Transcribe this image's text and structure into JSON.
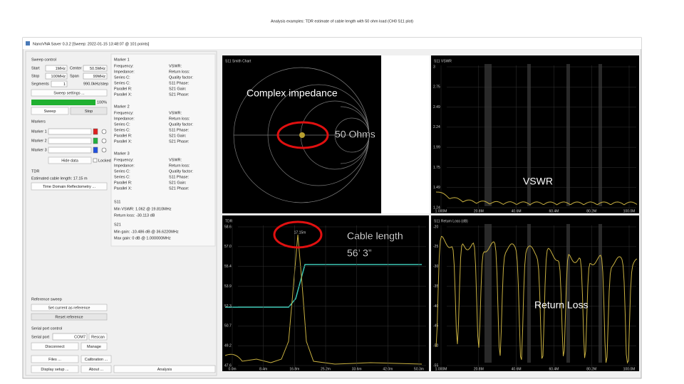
{
  "slide_title": "Analysis examples: TDR estimate of cable length with 50 ohm load (CH0 S11 plot)",
  "window_title": "NanoVNA Saver 0.3.2 [Sweep: 2022-01-15 13:48:07 @ 101 points]",
  "sweep_control": {
    "heading": "Sweep control",
    "start_label": "Start",
    "start": "1MHz",
    "center_label": "Center",
    "center": "50.5MHz",
    "stop_label": "Stop",
    "stop": "100MHz",
    "span_label": "Span",
    "span": "99MHz",
    "segments_label": "Segments",
    "segments": "1",
    "step": "990.0kHz/step",
    "settings_button": "Sweep settings ...",
    "progress": "100%",
    "sweep_button": "Sweep",
    "stop_button": "Stop"
  },
  "markers": {
    "heading": "Markers",
    "rows": [
      "Marker 1",
      "Marker 2",
      "Marker 3"
    ],
    "hide_button": "Hide data",
    "locked": "Locked"
  },
  "tdr_panel": {
    "heading": "TDR",
    "estimate": "Estimated cable length: 17.15 m",
    "button": "Time Domain Reflectometry ..."
  },
  "marker_info": [
    {
      "title": "Marker 1",
      "left": [
        "Frequency:",
        "Impedance:",
        "Series C:",
        "Series C:",
        "Parallel R:",
        "Parallel X:"
      ],
      "right": [
        "VSWR:",
        "Return loss:",
        "Quality factor:",
        "S11 Phase:",
        "S21 Gain:",
        "S21 Phase:"
      ]
    },
    {
      "title": "Marker 2",
      "left": [
        "Frequency:",
        "Impedance:",
        "Series C:",
        "Series C:",
        "Parallel R:",
        "Parallel X:"
      ],
      "right": [
        "VSWR:",
        "Return loss:",
        "Quality factor:",
        "S11 Phase:",
        "S21 Gain:",
        "S21 Phase:"
      ]
    },
    {
      "title": "Marker 3",
      "left": [
        "Frequency:",
        "Impedance:",
        "Series C:",
        "Series C:",
        "Parallel R:",
        "Parallel X:"
      ],
      "right": [
        "VSWR:",
        "Return loss:",
        "Quality factor:",
        "S11 Phase:",
        "S21 Gain:",
        "S21 Phase:"
      ]
    }
  ],
  "s11_summary": {
    "heading": "S11",
    "lines": [
      "Min VSWR: 1.062 @ 19.810MHz",
      "Return loss: -30.113 dB"
    ]
  },
  "s21_summary": {
    "heading": "S21",
    "lines": [
      "Min gain: -10.486 dB @ 36.6220MHz",
      "Max gain: 0 dB @ 1.000000MHz"
    ]
  },
  "reference": {
    "heading": "Reference sweep",
    "set_button": "Set current as reference",
    "reset_button": "Reset reference"
  },
  "serial": {
    "heading": "Serial port control",
    "port_label": "Serial port",
    "port": "COM7",
    "rescan": "Rescan",
    "disconnect": "Disconnect",
    "manage": "Manage"
  },
  "bottom_buttons": [
    "Files ...",
    "Calibration ...",
    "Display setup ...",
    "About ..."
  ],
  "analysis_button": "Analysis",
  "charts": {
    "smith": {
      "title": "S11 Smith Chart"
    },
    "vswr": {
      "title": "S11 VSWR",
      "yticks": [
        "3",
        "2.75",
        "2.49",
        "2.24",
        "1.99",
        "1.75",
        "1.49",
        "1.24"
      ],
      "xticks": [
        "1.000M",
        "20.8M",
        "40.6M",
        "60.4M",
        "80.2M",
        "100.0M"
      ]
    },
    "tdr": {
      "title": "TDR",
      "peak_label": "17.15m",
      "yticks": [
        "58.6",
        "57.0",
        "55.4",
        "53.9",
        "52.3",
        "50.7",
        "49.2",
        "47.6"
      ],
      "xticks": [
        "0.0m",
        "8.4m",
        "16.8m",
        "25.2m",
        "33.6m",
        "42.0m",
        "50.3m"
      ]
    },
    "return_loss": {
      "title": "S11 Return Loss (dB)",
      "yticks": [
        "-20",
        "-25",
        "-30",
        "-35",
        "-40",
        "-45",
        "-50",
        "-55"
      ],
      "xticks": [
        "1.000M",
        "20.8M",
        "40.6M",
        "60.4M",
        "80.2M",
        "100.0M"
      ]
    }
  },
  "annotations": {
    "complex_impedance": "Complex impedance",
    "fifty_ohms": "50 Ohms",
    "vswr": "VSWR",
    "cable_length": "Cable length",
    "cable_feet": "56’ 3”",
    "return_loss": "Return Loss"
  }
}
